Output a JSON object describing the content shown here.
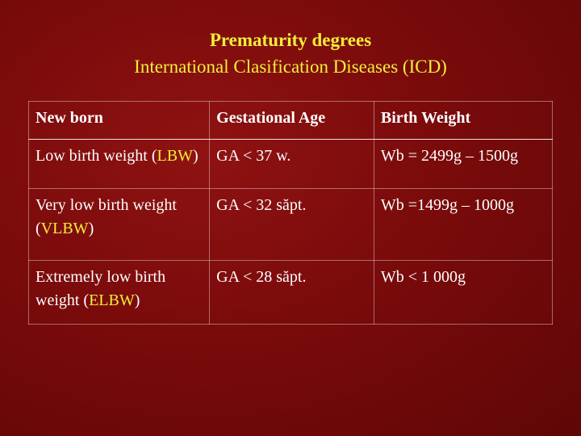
{
  "title": {
    "line1": "Prematurity degrees",
    "line2": "International Clasification Diseases (ICD)"
  },
  "table": {
    "headers": [
      "New born",
      "Gestational Age",
      "Birth Weight"
    ],
    "rows": [
      {
        "newborn_prefix": "Low birth weight (",
        "newborn_abbr": "LBW",
        "newborn_suffix": ")",
        "gestational_age": "GA < 37 w.",
        "birth_weight": "Wb = 2499g – 1500g"
      },
      {
        "newborn_prefix": "Very low birth weight (",
        "newborn_abbr": "VLBW",
        "newborn_suffix": ")",
        "gestational_age": "GA < 32 săpt.",
        "birth_weight": "Wb =1499g – 1000g"
      },
      {
        "newborn_prefix": "Extremely low birth weight  (",
        "newborn_abbr": "ELBW",
        "newborn_suffix": ")",
        "gestational_age": "GA < 28 săpt.",
        "birth_weight": "Wb < 1 000g"
      }
    ]
  },
  "colors": {
    "background": "#7a0b0b",
    "title": "#f2ef3a",
    "body_text": "#ffffff",
    "abbreviation": "#f2ef3a"
  }
}
